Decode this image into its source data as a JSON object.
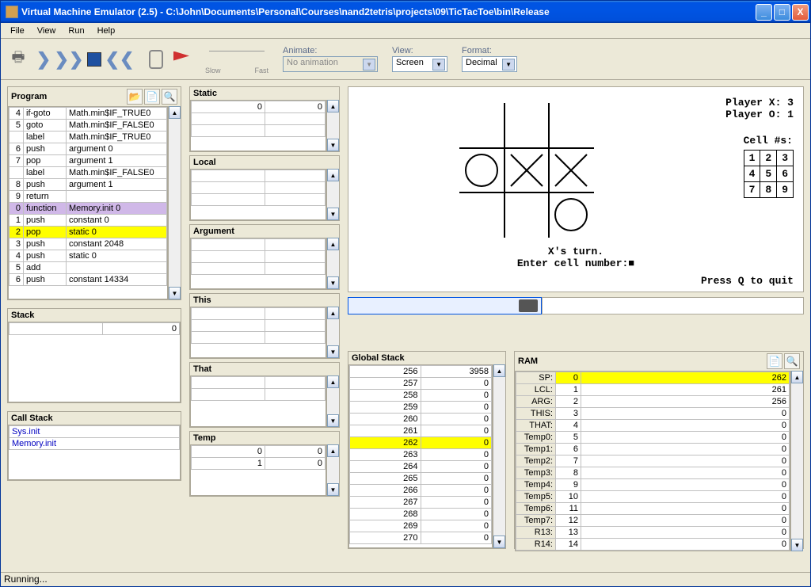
{
  "title": "Virtual Machine Emulator (2.5) - C:\\John\\Documents\\Personal\\Courses\\nand2tetris\\projects\\09\\TicTacToe\\bin\\Release",
  "menu": {
    "file": "File",
    "view": "View",
    "run": "Run",
    "help": "Help"
  },
  "toolbar": {
    "slow": "Slow",
    "fast": "Fast",
    "animate_label": "Animate:",
    "animate_val": "No animation",
    "view_label": "View:",
    "view_val": "Screen",
    "format_label": "Format:",
    "format_val": "Decimal"
  },
  "program": {
    "label": "Program",
    "rows": [
      {
        "n": "4",
        "cmd": "if-goto",
        "arg": "Math.min$IF_TRUE0"
      },
      {
        "n": "5",
        "cmd": "goto",
        "arg": "Math.min$IF_FALSE0"
      },
      {
        "n": "",
        "cmd": "label",
        "arg": "Math.min$IF_TRUE0"
      },
      {
        "n": "6",
        "cmd": "push",
        "arg": "argument 0"
      },
      {
        "n": "7",
        "cmd": "pop",
        "arg": "argument 1"
      },
      {
        "n": "",
        "cmd": "label",
        "arg": "Math.min$IF_FALSE0"
      },
      {
        "n": "8",
        "cmd": "push",
        "arg": "argument 1"
      },
      {
        "n": "9",
        "cmd": "return",
        "arg": ""
      },
      {
        "n": "0",
        "cmd": "function",
        "arg": "Memory.init 0",
        "hl": "purple"
      },
      {
        "n": "1",
        "cmd": "push",
        "arg": "constant 0"
      },
      {
        "n": "2",
        "cmd": "pop",
        "arg": "static 0",
        "hl": "yellow"
      },
      {
        "n": "3",
        "cmd": "push",
        "arg": "constant 2048"
      },
      {
        "n": "4",
        "cmd": "push",
        "arg": "static 0"
      },
      {
        "n": "5",
        "cmd": "add",
        "arg": ""
      },
      {
        "n": "6",
        "cmd": "push",
        "arg": "constant 14334"
      }
    ]
  },
  "segments": {
    "static": {
      "label": "Static",
      "rows": [
        [
          "0",
          "0"
        ],
        [
          "",
          ""
        ],
        [
          "",
          ""
        ]
      ]
    },
    "local": {
      "label": "Local",
      "rows": [
        [
          "",
          ""
        ],
        [
          "",
          ""
        ],
        [
          "",
          ""
        ]
      ]
    },
    "argument": {
      "label": "Argument",
      "rows": [
        [
          "",
          ""
        ],
        [
          "",
          ""
        ],
        [
          "",
          ""
        ]
      ]
    },
    "this": {
      "label": "This",
      "rows": [
        [
          "",
          ""
        ],
        [
          "",
          ""
        ],
        [
          "",
          ""
        ]
      ]
    },
    "that": {
      "label": "That",
      "rows": [
        [
          "",
          ""
        ],
        [
          "",
          ""
        ]
      ]
    },
    "temp": {
      "label": "Temp",
      "rows": [
        [
          "0",
          "0"
        ],
        [
          "1",
          "0"
        ]
      ]
    }
  },
  "stack": {
    "label": "Stack",
    "rows": [
      [
        "",
        "0"
      ]
    ]
  },
  "callstack": {
    "label": "Call Stack",
    "rows": [
      "Sys.init",
      "Memory.init"
    ]
  },
  "screen": {
    "score_x": "Player X: 3",
    "score_o": "Player O: 1",
    "cell_hdr": "Cell #s:",
    "turn": "X's turn.",
    "prompt": "Enter cell number:■",
    "quit": "Press Q to quit"
  },
  "globalstack": {
    "label": "Global Stack",
    "rows": [
      [
        "256",
        "3958"
      ],
      [
        "257",
        "0"
      ],
      [
        "258",
        "0"
      ],
      [
        "259",
        "0"
      ],
      [
        "260",
        "0"
      ],
      [
        "261",
        "0"
      ],
      [
        "262",
        "0",
        "yellow"
      ],
      [
        "263",
        "0"
      ],
      [
        "264",
        "0"
      ],
      [
        "265",
        "0"
      ],
      [
        "266",
        "0"
      ],
      [
        "267",
        "0"
      ],
      [
        "268",
        "0"
      ],
      [
        "269",
        "0"
      ],
      [
        "270",
        "0"
      ]
    ]
  },
  "ram": {
    "label": "RAM",
    "rows": [
      [
        "SP:",
        "0",
        "262",
        "yellow"
      ],
      [
        "LCL:",
        "1",
        "261"
      ],
      [
        "ARG:",
        "2",
        "256"
      ],
      [
        "THIS:",
        "3",
        "0"
      ],
      [
        "THAT:",
        "4",
        "0"
      ],
      [
        "Temp0:",
        "5",
        "0"
      ],
      [
        "Temp1:",
        "6",
        "0"
      ],
      [
        "Temp2:",
        "7",
        "0"
      ],
      [
        "Temp3:",
        "8",
        "0"
      ],
      [
        "Temp4:",
        "9",
        "0"
      ],
      [
        "Temp5:",
        "10",
        "0"
      ],
      [
        "Temp6:",
        "11",
        "0"
      ],
      [
        "Temp7:",
        "12",
        "0"
      ],
      [
        "R13:",
        "13",
        "0"
      ],
      [
        "R14:",
        "14",
        "0"
      ]
    ]
  },
  "status": "Running..."
}
